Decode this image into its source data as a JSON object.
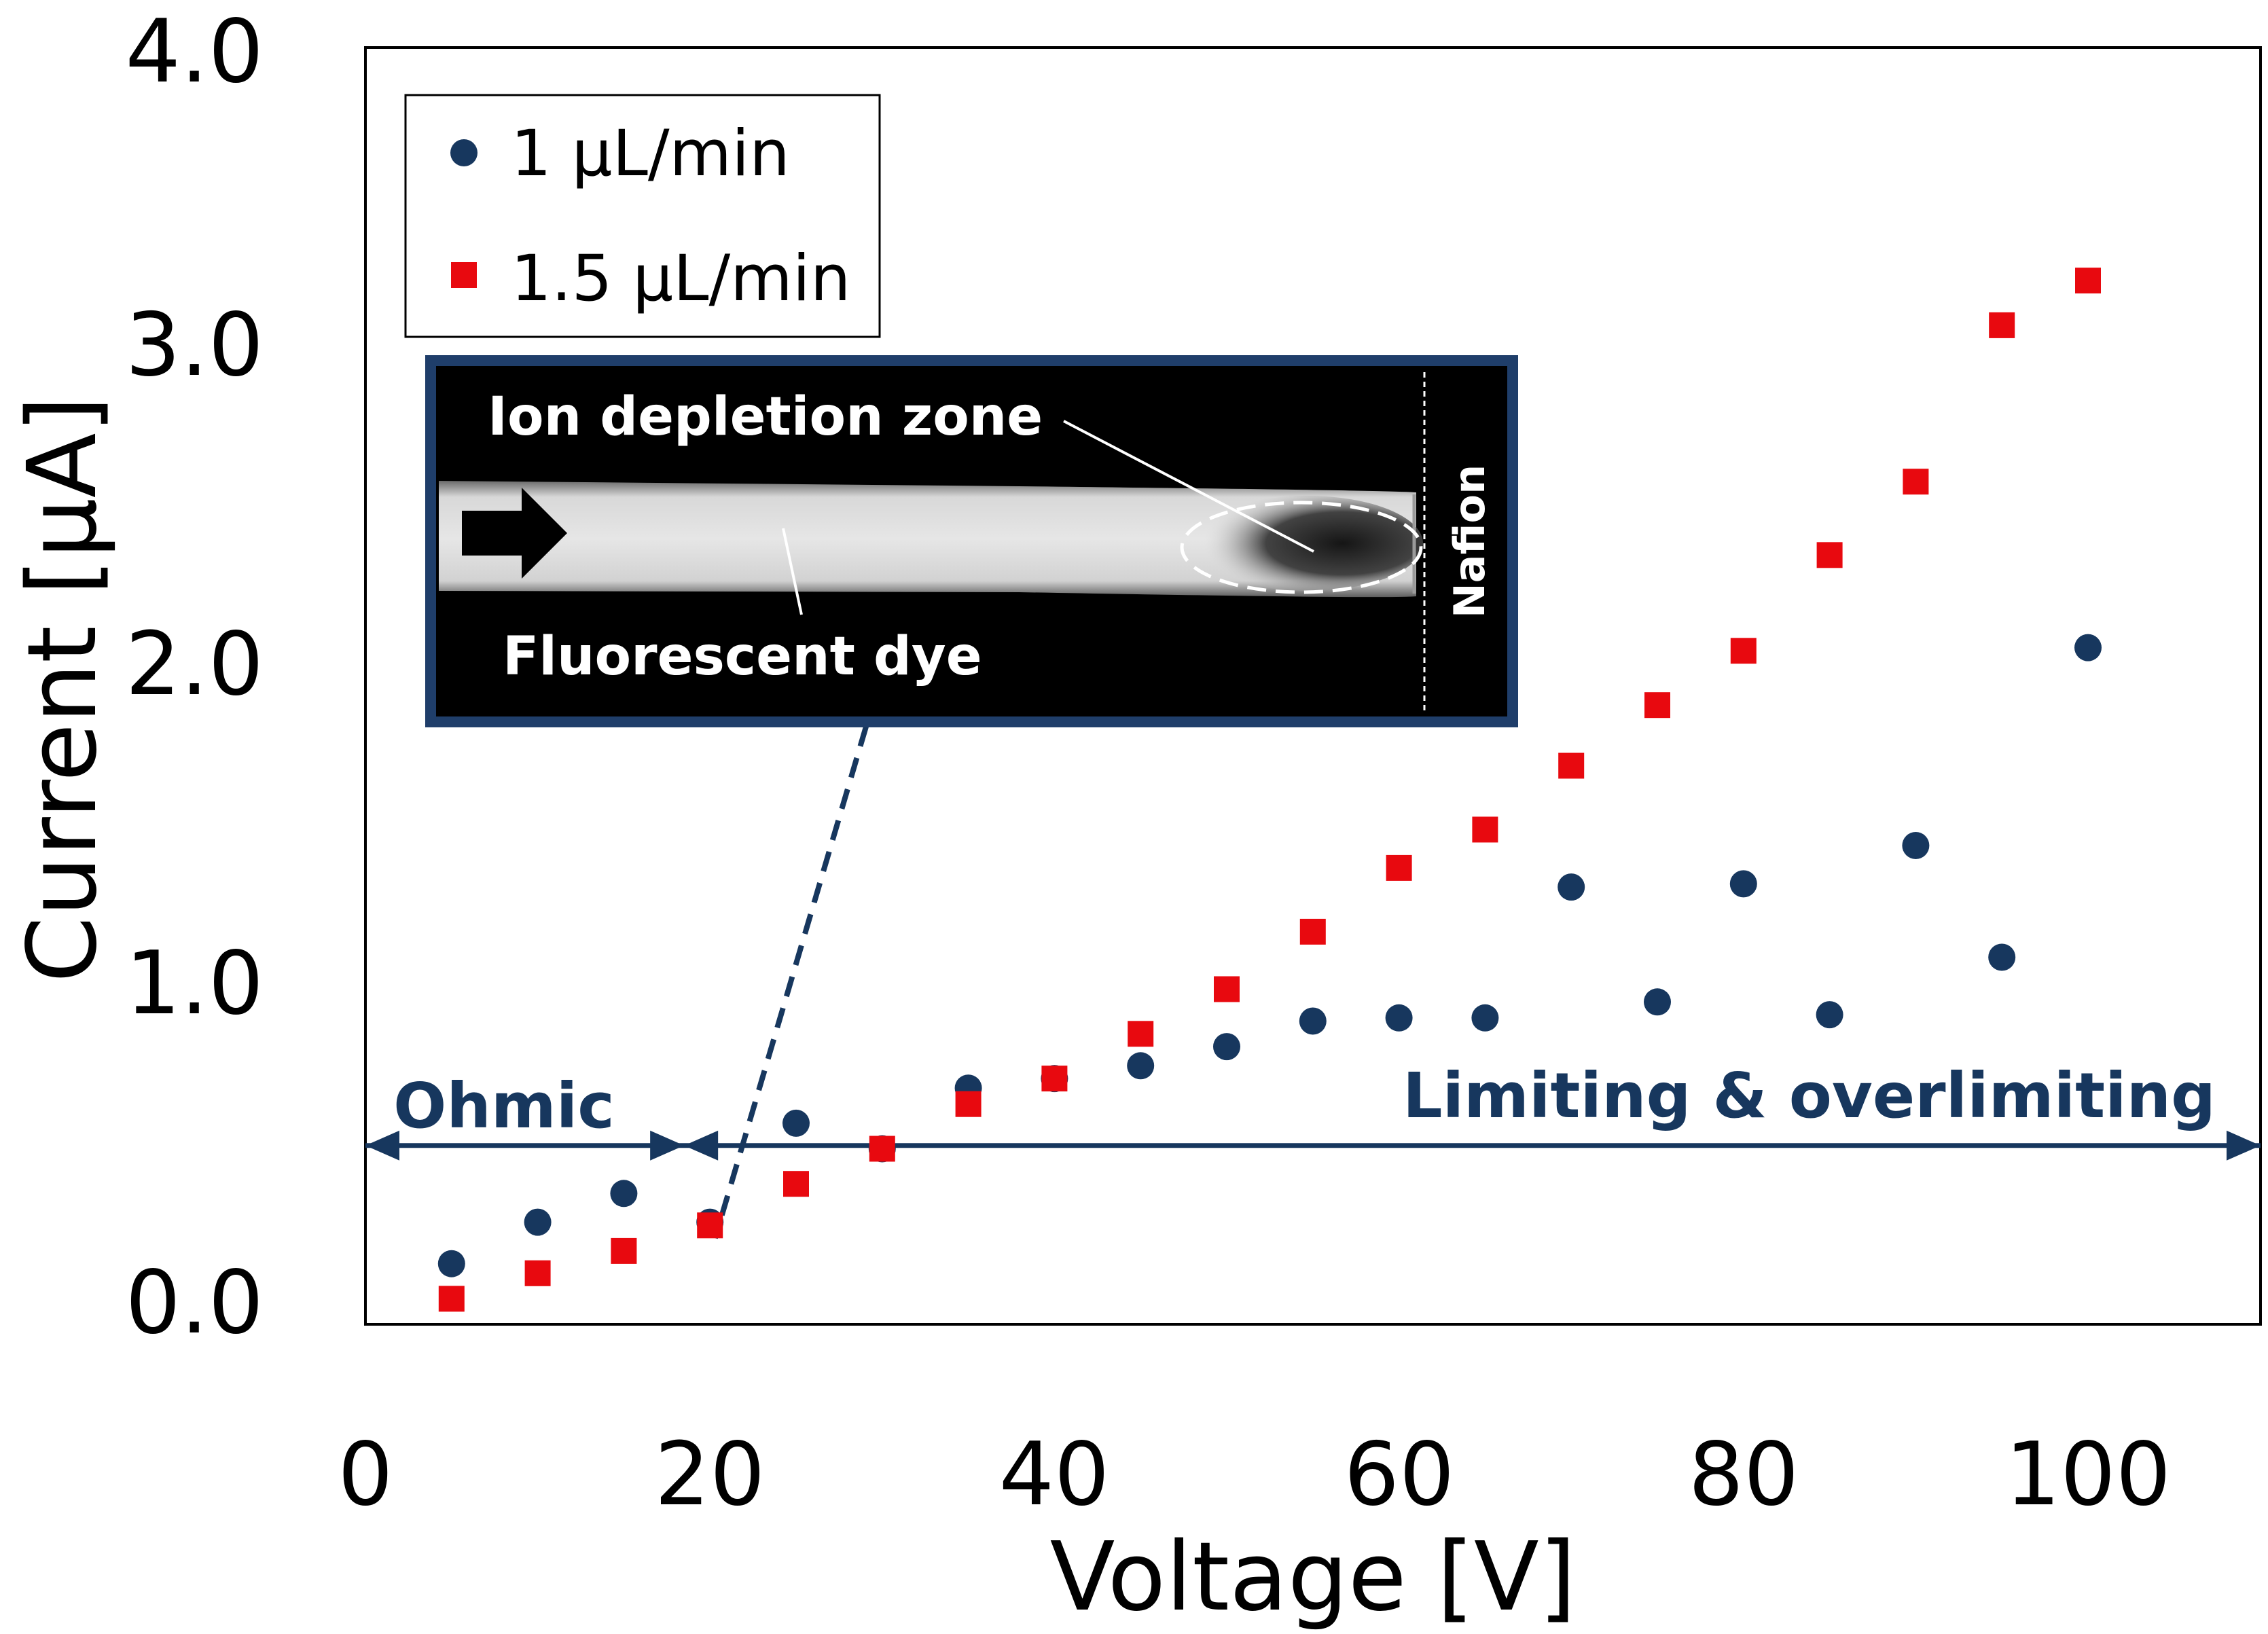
{
  "chart_data": {
    "type": "scatter",
    "title": "",
    "xlabel": "Voltage [V]",
    "ylabel": "Current [μA]",
    "xlim": [
      0,
      110
    ],
    "ylim": [
      0,
      4.0
    ],
    "xticks": [
      "0",
      "20",
      "40",
      "60",
      "80",
      "100"
    ],
    "yticks": [
      "0.0",
      "1.0",
      "2.0",
      "3.0",
      "4.0"
    ],
    "grid": false,
    "legend_position": "top-left",
    "series": [
      {
        "name": "1 μL/min",
        "marker": "circle",
        "color": "#17375e",
        "x": [
          5,
          10,
          15,
          20,
          25,
          30,
          35,
          40,
          45,
          50,
          55,
          60,
          65,
          70,
          75,
          80,
          85,
          90,
          95,
          100
        ],
        "y": [
          0.19,
          0.32,
          0.41,
          0.32,
          0.63,
          0.55,
          0.74,
          0.77,
          0.81,
          0.87,
          0.95,
          0.96,
          0.96,
          1.37,
          1.01,
          1.38,
          0.97,
          1.5,
          1.15,
          2.12
        ]
      },
      {
        "name": "1.5 μL/min",
        "marker": "square",
        "color": "#e8090f",
        "x": [
          5,
          10,
          15,
          20,
          25,
          30,
          35,
          40,
          45,
          50,
          55,
          60,
          65,
          70,
          75,
          80,
          85,
          90,
          95,
          100
        ],
        "y": [
          0.08,
          0.16,
          0.23,
          0.31,
          0.44,
          0.55,
          0.69,
          0.77,
          0.91,
          1.05,
          1.23,
          1.43,
          1.55,
          1.75,
          1.94,
          2.11,
          2.41,
          2.64,
          3.13,
          3.27
        ]
      }
    ],
    "annotations": {
      "ohmic_label": "Ohmic",
      "limiting_label": "Limiting & overlimiting",
      "regime_boundary_x": 18.5,
      "regime_arrow_y": 0.56,
      "inset_pointer_target": {
        "x": 20.3,
        "y": 0.27
      },
      "inset": {
        "depletion_label": "Ion depletion zone",
        "dye_label": "Fluorescent dye",
        "nafion_label": "Nafion"
      }
    },
    "colors": {
      "navy": "#17375e",
      "red": "#e8090f",
      "inset_border": "#1f3e6a"
    }
  }
}
